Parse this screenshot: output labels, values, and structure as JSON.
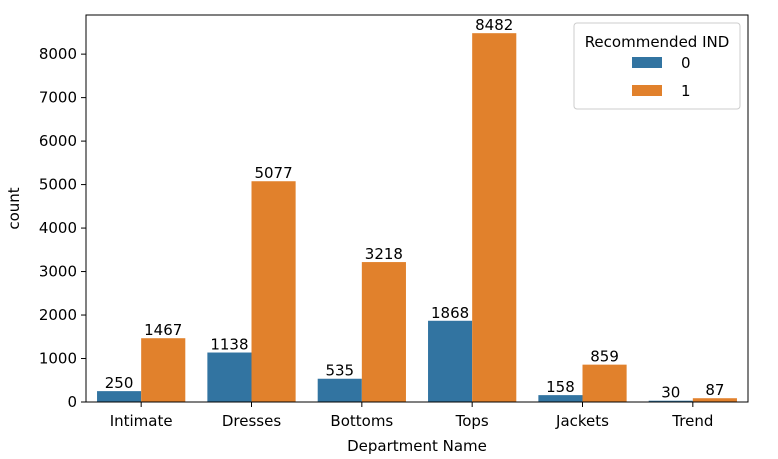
{
  "chart_data": {
    "type": "bar",
    "categories": [
      "Intimate",
      "Dresses",
      "Bottoms",
      "Tops",
      "Jackets",
      "Trend"
    ],
    "series": [
      {
        "name": "0",
        "values": [
          250,
          1138,
          535,
          1868,
          158,
          30
        ]
      },
      {
        "name": "1",
        "values": [
          1467,
          5077,
          3218,
          8482,
          859,
          87
        ]
      }
    ],
    "colors": [
      "#1f77b4",
      "#ff7f0e"
    ],
    "bar_colors": [
      "#3274a1",
      "#e1812c"
    ],
    "xlabel": "Department Name",
    "ylabel": "count",
    "ylim": [
      0,
      8900
    ],
    "yticks": [
      0,
      1000,
      2000,
      3000,
      4000,
      5000,
      6000,
      7000,
      8000
    ],
    "grid": false,
    "legend": {
      "title": "Recommended IND",
      "placement": "top-right"
    }
  }
}
